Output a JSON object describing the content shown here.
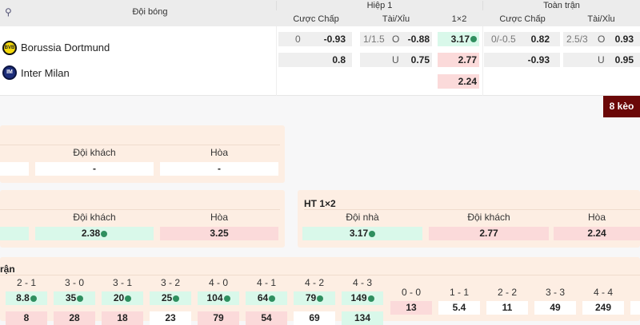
{
  "header": {
    "team_col": "Đội bóng",
    "first_half": "Hiệp 1",
    "full_time": "Toàn trận",
    "handicap": "Cược Chấp",
    "over_under": "Tài/Xỉu",
    "one_x_two": "1×2"
  },
  "teams": [
    {
      "name": "Borussia Dortmund",
      "logo": "bvb-logo"
    },
    {
      "name": "Inter Milan",
      "logo": "inter-logo"
    }
  ],
  "first_half": {
    "handicap": [
      {
        "line": "0",
        "odds": "-0.93"
      },
      {
        "line": "",
        "odds": "0.8"
      }
    ],
    "over_under": [
      {
        "line": "1/1.5",
        "side": "O",
        "odds": "-0.88"
      },
      {
        "line": "",
        "side": "U",
        "odds": "0.75"
      }
    ],
    "one_x_two": [
      {
        "odds": "3.17",
        "trend": "up"
      },
      {
        "odds": "2.77",
        "trend": "down"
      },
      {
        "odds": "2.24",
        "trend": "down"
      }
    ]
  },
  "full_time": {
    "handicap": [
      {
        "line": "0/-0.5",
        "odds": "0.82"
      },
      {
        "line": "",
        "odds": "-0.93"
      }
    ],
    "over_under": [
      {
        "line": "2.5/3",
        "side": "O",
        "odds": "0.93"
      },
      {
        "line": "",
        "side": "U",
        "odds": "0.95"
      }
    ]
  },
  "more_button": "8 kèo",
  "market1": {
    "labels": [
      "Đội khách",
      "Hòa"
    ],
    "values": [
      "",
      "-",
      "-"
    ]
  },
  "market2": {
    "labels": [
      "Đội khách",
      "Hòa"
    ],
    "values": [
      {
        "v": "",
        "c": "g"
      },
      {
        "v": "2.38",
        "c": "g",
        "t": "up"
      },
      {
        "v": "3.25",
        "c": "r",
        "t": "down"
      }
    ]
  },
  "ht1x2": {
    "title": "HT 1×2",
    "labels": [
      "Đội nhà",
      "Đội khách",
      "Hòa"
    ],
    "values": [
      {
        "v": "3.17",
        "c": "g",
        "t": "up"
      },
      {
        "v": "2.77",
        "c": "r",
        "t": "down"
      },
      {
        "v": "2.24",
        "c": "r",
        "t": "down"
      }
    ]
  },
  "correct_score": {
    "title_fragment": "rận",
    "home_scores": [
      "2 - 1",
      "3 - 0",
      "3 - 1",
      "3 - 2",
      "4 - 0",
      "4 - 1",
      "4 - 2",
      "4 - 3"
    ],
    "home_odds": [
      {
        "v": "8.8",
        "c": "g",
        "t": "up"
      },
      {
        "v": "35",
        "c": "g",
        "t": "up"
      },
      {
        "v": "20",
        "c": "g",
        "t": "up"
      },
      {
        "v": "25",
        "c": "g",
        "t": "up"
      },
      {
        "v": "104",
        "c": "g",
        "t": "up"
      },
      {
        "v": "64",
        "c": "g",
        "t": "up"
      },
      {
        "v": "79",
        "c": "g",
        "t": "up"
      },
      {
        "v": "149",
        "c": "g",
        "t": "up"
      }
    ],
    "away_odds": [
      {
        "v": "8",
        "c": "r",
        "t": "down"
      },
      {
        "v": "28",
        "c": "r",
        "t": "down"
      },
      {
        "v": "18",
        "c": "r",
        "t": "down"
      },
      {
        "v": "23",
        "c": "w"
      },
      {
        "v": "79",
        "c": "r",
        "t": "down"
      },
      {
        "v": "54",
        "c": "r",
        "t": "down"
      },
      {
        "v": "69",
        "c": "w"
      },
      {
        "v": "134",
        "c": "g",
        "t": "down"
      }
    ],
    "draw_scores": [
      "0 - 0",
      "1 - 1",
      "2 - 2",
      "3 - 3",
      "4 - 4"
    ],
    "draw_odds": [
      {
        "v": "13",
        "c": "r",
        "t": "down"
      },
      {
        "v": "5.4",
        "c": "w"
      },
      {
        "v": "11",
        "c": "w"
      },
      {
        "v": "49",
        "c": "w"
      },
      {
        "v": "249",
        "c": "w"
      }
    ]
  }
}
